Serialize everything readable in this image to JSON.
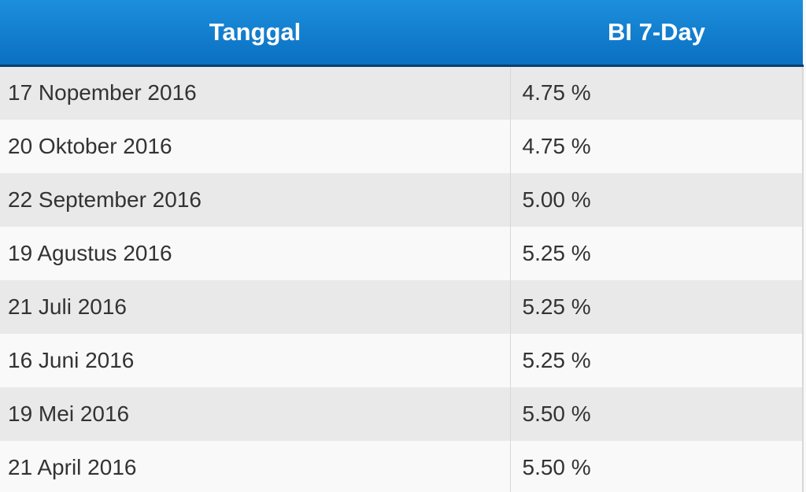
{
  "table": {
    "header": [
      "Tanggal",
      "BI 7-Day"
    ],
    "rows": [
      [
        "17 Nopember 2016",
        "4.75 %"
      ],
      [
        "20 Oktober 2016",
        "4.75 %"
      ],
      [
        "22 September 2016",
        "5.00 %"
      ],
      [
        "19 Agustus 2016",
        "5.25 %"
      ],
      [
        "21 Juli 2016",
        "5.25 %"
      ],
      [
        "16 Juni 2016",
        "5.25 %"
      ],
      [
        "19 Mei 2016",
        "5.50 %"
      ],
      [
        "21 April 2016",
        "5.50 %"
      ]
    ]
  }
}
